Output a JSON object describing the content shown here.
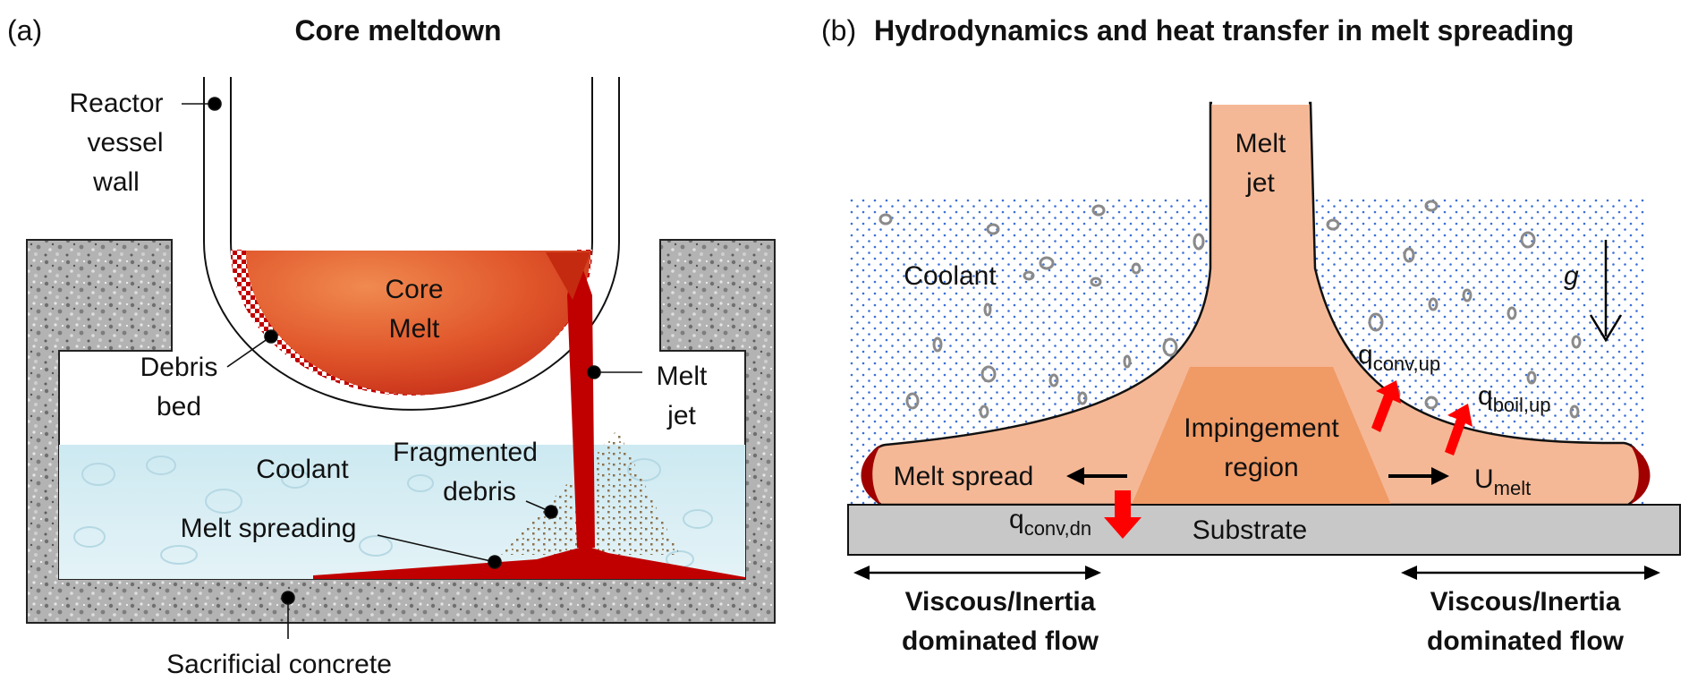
{
  "panel_a": {
    "tag": "(a)",
    "title": "Core meltdown",
    "labels": {
      "reactor_vessel_wall": [
        "Reactor",
        "vessel",
        "wall"
      ],
      "core_melt": [
        "Core",
        "Melt"
      ],
      "debris_bed": [
        "Debris",
        "bed"
      ],
      "melt_jet": [
        "Melt",
        "jet"
      ],
      "fragmented_debris": [
        "Fragmented",
        "debris"
      ],
      "coolant": "Coolant",
      "melt_spreading": "Melt spreading",
      "sacrificial_concrete": "Sacrificial concrete"
    }
  },
  "panel_b": {
    "tag": "(b)",
    "title": "Hydrodynamics and heat transfer in melt spreading",
    "labels": {
      "melt_jet": [
        "Melt",
        "jet"
      ],
      "coolant": "Coolant",
      "gravity": "g",
      "impingement_region": [
        "Impingement",
        "region"
      ],
      "melt_spread": "Melt spread",
      "u_melt_main": "U",
      "u_melt_sub": "melt",
      "q_conv_up_main": "q",
      "q_conv_up_sub": "conv,up",
      "q_boil_up_main": "q",
      "q_boil_up_sub": "boil,up",
      "q_conv_dn_main": "q",
      "q_conv_dn_sub": "conv,dn",
      "substrate": "Substrate",
      "flow_left": [
        "Viscous/Inertia",
        "dominated flow"
      ],
      "flow_right": [
        "Viscous/Inertia",
        "dominated flow"
      ]
    }
  },
  "colors": {
    "concrete": "#9e9e9e",
    "coolant_a": "#cfe9f0",
    "melt_red": "#c00000",
    "core_orange": "#e0552a",
    "melt_peach": "#f5b896",
    "impingement": "#f09a66",
    "crust": "#a00000",
    "substrate": "#c8c8c8",
    "dots": "#3c6fd6",
    "arrow_red": "#ff0000"
  }
}
